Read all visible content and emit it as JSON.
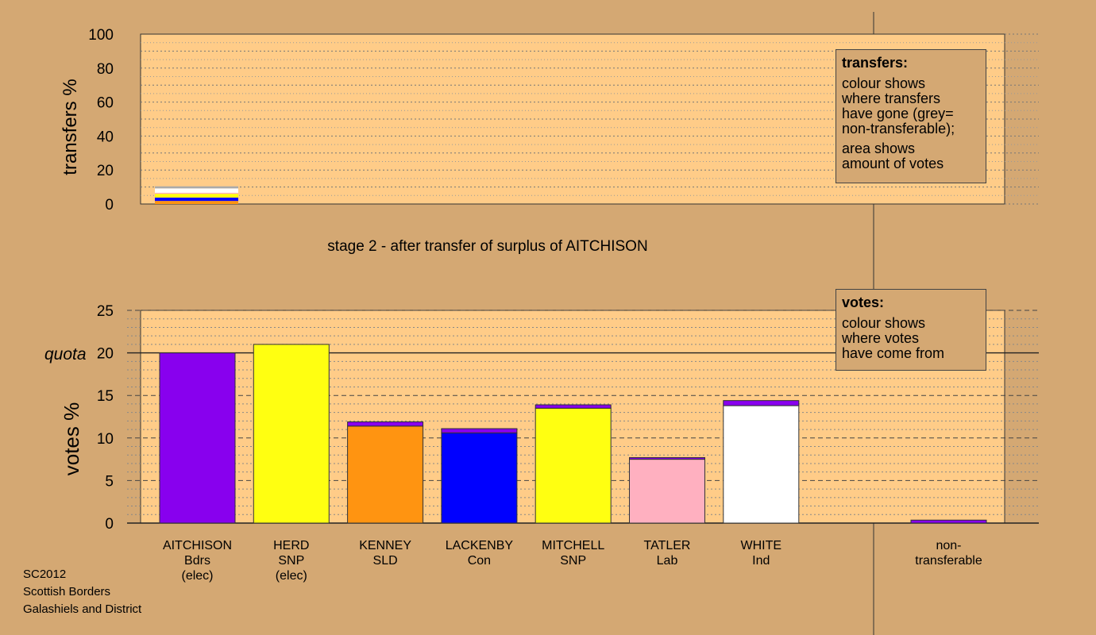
{
  "top_chart": {
    "ylabel": "transfers %",
    "yticks": [
      "0",
      "20",
      "40",
      "60",
      "80",
      "100"
    ],
    "ylim": [
      0,
      100
    ]
  },
  "stage_title": "stage 2 - after transfer of surplus of AITCHISON",
  "transfers_legend": {
    "title": "transfers:",
    "lines1": [
      "colour shows",
      "where transfers",
      "have gone (grey=",
      "non-transferable);"
    ],
    "lines2": [
      "area shows",
      "amount of votes"
    ]
  },
  "votes_legend": {
    "title": "votes:",
    "lines": [
      "colour shows",
      "where votes",
      "have come from"
    ]
  },
  "bottom_chart": {
    "ylabel": "votes %",
    "yticks": [
      "0",
      "5",
      "10",
      "15",
      "20",
      "25"
    ],
    "ylim": [
      0,
      25
    ],
    "quota_label": "quota",
    "quota_value": 20
  },
  "footer": [
    "SC2012",
    "Scottish Borders",
    "Galashiels and District"
  ],
  "colors": {
    "background": "#d4a873",
    "plot": "#ffcc88",
    "Bdrs": "#8800ee",
    "SNP": "#ffff11",
    "SLD": "#ff9411",
    "Con": "#0000ff",
    "Lab": "#ffb0c0",
    "Ind": "#ffffff",
    "nontransferable": "#aaaaaa"
  },
  "chart_data": [
    {
      "type": "bar",
      "stacked": true,
      "ylabel": "transfers %",
      "ylim": [
        0,
        100
      ],
      "categories": [
        "AITCHISON"
      ],
      "segments": [
        {
          "party": "SLD",
          "color": "#ff9411",
          "value": 1.8
        },
        {
          "party": "Con",
          "color": "#0000ff",
          "value": 2.0
        },
        {
          "party": "SNP",
          "color": "#ffff11",
          "value": 2.2
        },
        {
          "party": "Lab",
          "color": "#ffb0c0",
          "value": 0.6
        },
        {
          "party": "Ind",
          "color": "#ffffff",
          "value": 2.6
        },
        {
          "party": "non-transferable",
          "color": "#aaaaaa",
          "value": 1.2
        }
      ]
    },
    {
      "type": "bar",
      "stacked": true,
      "ylabel": "votes %",
      "ylim": [
        0,
        25
      ],
      "quota": 20,
      "candidates": [
        {
          "name": "AITCHISON",
          "party": "Bdrs",
          "note": "(elec)",
          "first": 20.0,
          "first_color": "#8800ee",
          "transfer": 0
        },
        {
          "name": "HERD",
          "party": "SNP",
          "note": "(elec)",
          "first": 21.0,
          "first_color": "#ffff11",
          "transfer": 0
        },
        {
          "name": "KENNEY",
          "party": "SLD",
          "note": "",
          "first": 11.4,
          "first_color": "#ff9411",
          "transfer": 0.5
        },
        {
          "name": "LACKENBY",
          "party": "Con",
          "note": "",
          "first": 10.6,
          "first_color": "#0000ff",
          "transfer": 0.5
        },
        {
          "name": "MITCHELL",
          "party": "SNP",
          "note": "",
          "first": 13.5,
          "first_color": "#ffff11",
          "transfer": 0.4
        },
        {
          "name": "TATLER",
          "party": "Lab",
          "note": "",
          "first": 7.5,
          "first_color": "#ffb0c0",
          "transfer": 0.2
        },
        {
          "name": "WHITE",
          "party": "Ind",
          "note": "",
          "first": 13.8,
          "first_color": "#ffffff",
          "transfer": 0.6
        }
      ],
      "nontransferable": {
        "line1": "non-",
        "line2": "transferable",
        "value": 0.35,
        "color": "#8800ee"
      }
    }
  ]
}
